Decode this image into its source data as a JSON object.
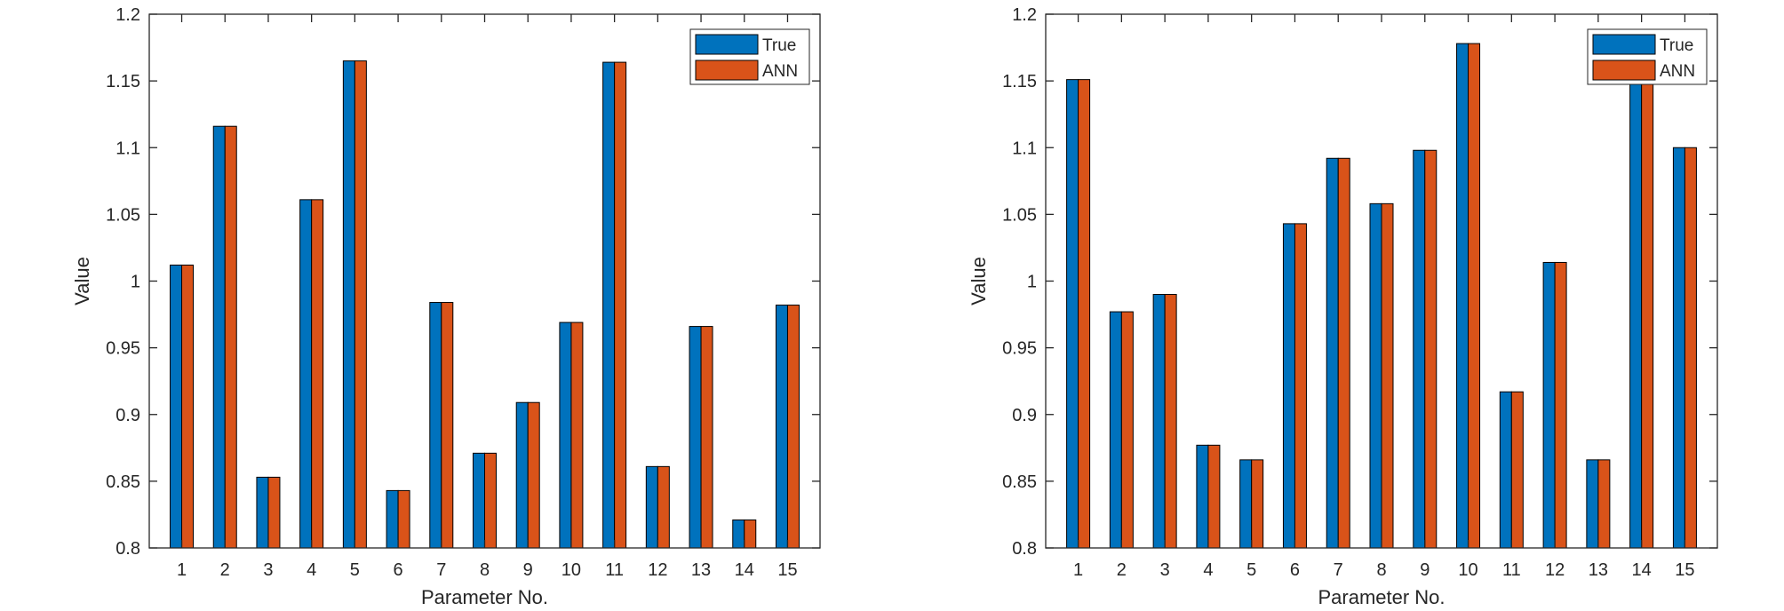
{
  "chart_data": [
    {
      "type": "bar",
      "categories": [
        "1",
        "2",
        "3",
        "4",
        "5",
        "6",
        "7",
        "8",
        "9",
        "10",
        "11",
        "12",
        "13",
        "14",
        "15"
      ],
      "series": [
        {
          "name": "True",
          "values": [
            1.012,
            1.116,
            0.853,
            1.061,
            1.165,
            0.843,
            0.984,
            0.871,
            0.909,
            0.969,
            1.164,
            0.861,
            0.966,
            0.821,
            0.982
          ]
        },
        {
          "name": "ANN",
          "values": [
            1.012,
            1.116,
            0.853,
            1.061,
            1.165,
            0.843,
            0.984,
            0.871,
            0.909,
            0.969,
            1.164,
            0.861,
            0.966,
            0.821,
            0.982
          ]
        }
      ],
      "xlabel": "Parameter No.",
      "ylabel": "Value",
      "ylim": [
        0.8,
        1.2
      ],
      "yticks": [
        "0.8",
        "0.85",
        "0.9",
        "0.95",
        "1",
        "1.05",
        "1.1",
        "1.15",
        "1.2"
      ],
      "legend": "top-right",
      "grid": false
    },
    {
      "type": "bar",
      "categories": [
        "1",
        "2",
        "3",
        "4",
        "5",
        "6",
        "7",
        "8",
        "9",
        "10",
        "11",
        "12",
        "13",
        "14",
        "15"
      ],
      "series": [
        {
          "name": "True",
          "values": [
            1.151,
            0.977,
            0.99,
            0.877,
            0.866,
            1.043,
            1.092,
            1.058,
            1.098,
            1.178,
            0.917,
            1.014,
            0.866,
            1.15,
            1.1
          ]
        },
        {
          "name": "ANN",
          "values": [
            1.151,
            0.977,
            0.99,
            0.877,
            0.866,
            1.043,
            1.092,
            1.058,
            1.098,
            1.178,
            0.917,
            1.014,
            0.866,
            1.15,
            1.1
          ]
        }
      ],
      "xlabel": "Parameter No.",
      "ylabel": "Value",
      "ylim": [
        0.8,
        1.2
      ],
      "yticks": [
        "0.8",
        "0.85",
        "0.9",
        "0.95",
        "1",
        "1.05",
        "1.1",
        "1.15",
        "1.2"
      ],
      "legend": "top-right",
      "grid": false
    }
  ],
  "colors": {
    "True": "#0072BD",
    "ANN": "#D95319"
  }
}
